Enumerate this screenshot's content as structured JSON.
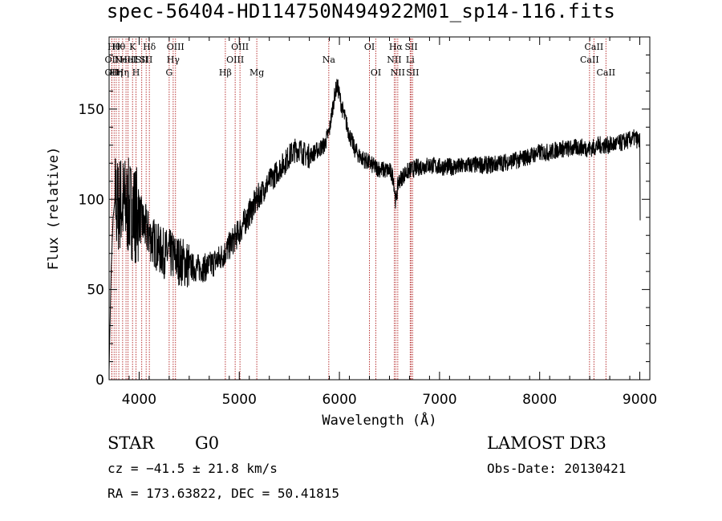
{
  "header": {
    "title": "spec-56404-HD114750N494922M01_sp14-116.fits"
  },
  "info": {
    "object_class": "STAR",
    "subclass": "G0",
    "survey": "LAMOST DR3",
    "cz_text": "cz = −41.5 ± 21.8 km/s",
    "obs_date_text": "Obs-Date: 20130421",
    "radec_text": "RA = 173.63822, DEC =  50.41815"
  },
  "chart_data": {
    "type": "line",
    "title": "spec-56404-HD114750N494922M01_sp14-116.fits",
    "xlabel": "Wavelength (Å)",
    "ylabel": "Flux (relative)",
    "xlim": [
      3700,
      9100
    ],
    "ylim": [
      0,
      190
    ],
    "xticks": [
      4000,
      5000,
      6000,
      7000,
      8000,
      9000
    ],
    "yticks": [
      0,
      50,
      100,
      150
    ],
    "line_color": "#000000",
    "marker_color": "#b22222",
    "series": [
      {
        "x": [
          3700,
          3720,
          3740,
          3760,
          3780,
          3800,
          3850,
          3900,
          3950,
          4000,
          4050,
          4100,
          4150,
          4200,
          4250,
          4300,
          4350,
          4400,
          4450,
          4500,
          4550,
          4600,
          4650,
          4700,
          4750,
          4800,
          4850,
          4900,
          4950,
          5000,
          5050,
          5100,
          5150,
          5200,
          5250,
          5300,
          5350,
          5400,
          5450,
          5500,
          5550,
          5600,
          5650,
          5700,
          5750,
          5800,
          5850,
          5900,
          5930,
          5960,
          5980,
          6000,
          6020,
          6050,
          6100,
          6150,
          6200,
          6250,
          6300,
          6350,
          6400,
          6450,
          6500,
          6540,
          6563,
          6590,
          6650,
          6700,
          6750,
          6800,
          6900,
          7000,
          7100,
          7200,
          7300,
          7400,
          7500,
          7600,
          7700,
          7800,
          7900,
          8000,
          8100,
          8200,
          8300,
          8400,
          8500,
          8600,
          8700,
          8800,
          8850,
          8900,
          8950,
          9000,
          9005
        ],
        "y": [
          5,
          60,
          90,
          100,
          95,
          98,
          97,
          95,
          93,
          90,
          85,
          80,
          76,
          72,
          70,
          70,
          68,
          66,
          65,
          63,
          62,
          62,
          62,
          63,
          65,
          67,
          70,
          74,
          78,
          82,
          87,
          92,
          97,
          102,
          106,
          110,
          113,
          117,
          120,
          124,
          127,
          128,
          125,
          124,
          126,
          128,
          130,
          138,
          150,
          160,
          163,
          158,
          152,
          146,
          136,
          128,
          124,
          122,
          120,
          118,
          117,
          116,
          116,
          112,
          98,
          110,
          114,
          116,
          117,
          118,
          119,
          118,
          118,
          118,
          119,
          119,
          119,
          120,
          121,
          122,
          124,
          126,
          126,
          128,
          128,
          129,
          128,
          130,
          130,
          131,
          132,
          133,
          134,
          132,
          80
        ]
      }
    ],
    "lines": [
      {
        "wavelength": 3727,
        "label": "OII",
        "row": 2
      },
      {
        "wavelength": 3727,
        "label": "OII",
        "row": 3
      },
      {
        "wavelength": 3750,
        "label": "Hθ",
        "row": 1
      },
      {
        "wavelength": 3771,
        "label": "Hη",
        "row": 3
      },
      {
        "wavelength": 3797,
        "label": "Hθ",
        "row": 1
      },
      {
        "wavelength": 3835,
        "label": "Hη",
        "row": 3
      },
      {
        "wavelength": 3869,
        "label": "NeIII",
        "row": 2
      },
      {
        "wavelength": 3889,
        "label": "HeI",
        "row": 2
      },
      {
        "wavelength": 3934,
        "label": "K",
        "row": 1
      },
      {
        "wavelength": 3969,
        "label": "H",
        "row": 3
      },
      {
        "wavelength": 4026,
        "label": "SII",
        "row": 2
      },
      {
        "wavelength": 4070,
        "label": "SII",
        "row": 2
      },
      {
        "wavelength": 4102,
        "label": "Hδ",
        "row": 1
      },
      {
        "wavelength": 4300,
        "label": "G",
        "row": 3
      },
      {
        "wavelength": 4340,
        "label": "Hγ",
        "row": 2
      },
      {
        "wavelength": 4363,
        "label": "OIII",
        "row": 1
      },
      {
        "wavelength": 4861,
        "label": "Hβ",
        "row": 3
      },
      {
        "wavelength": 4959,
        "label": "OIII",
        "row": 2
      },
      {
        "wavelength": 5007,
        "label": "OIII",
        "row": 1
      },
      {
        "wavelength": 5175,
        "label": "Mg",
        "row": 3
      },
      {
        "wavelength": 5894,
        "label": "Na",
        "row": 2
      },
      {
        "wavelength": 6300,
        "label": "OI",
        "row": 1
      },
      {
        "wavelength": 6364,
        "label": "OI",
        "row": 3
      },
      {
        "wavelength": 6548,
        "label": "NII",
        "row": 2
      },
      {
        "wavelength": 6563,
        "label": "Hα",
        "row": 1
      },
      {
        "wavelength": 6583,
        "label": "NII",
        "row": 3
      },
      {
        "wavelength": 6707,
        "label": "Li",
        "row": 2
      },
      {
        "wavelength": 6717,
        "label": "SII",
        "row": 1
      },
      {
        "wavelength": 6731,
        "label": "SII",
        "row": 3
      },
      {
        "wavelength": 8498,
        "label": "CaII",
        "row": 2
      },
      {
        "wavelength": 8542,
        "label": "CaII",
        "row": 1
      },
      {
        "wavelength": 8662,
        "label": "CaII",
        "row": 3
      }
    ]
  }
}
